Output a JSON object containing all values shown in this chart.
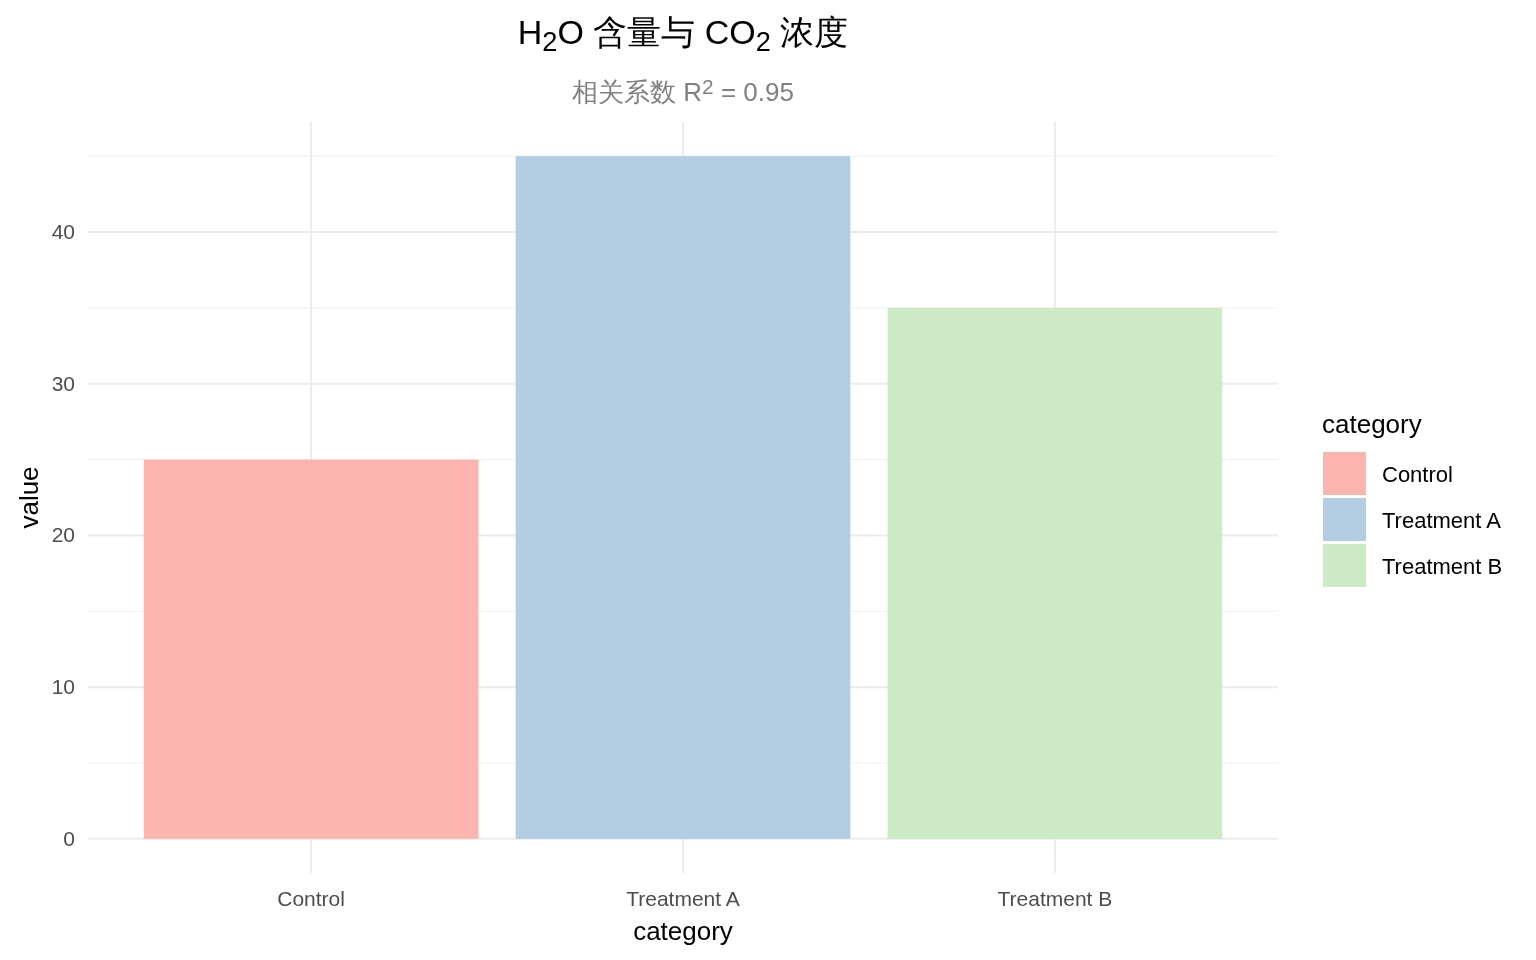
{
  "chart_data": {
    "type": "bar",
    "title": "H$_{2}$O 含量与 CO$_{2}$ 浓度",
    "subtitle": "相关系数 R$^{2}$ = 0.95",
    "xlabel": "category",
    "ylabel": "value",
    "legend_title": "category",
    "categories": [
      "Control",
      "Treatment A",
      "Treatment B"
    ],
    "series": [
      {
        "name": "Control",
        "color": "#fbb4ae",
        "values": [
          25,
          null,
          null
        ]
      },
      {
        "name": "Treatment A",
        "color": "#b3cde3",
        "values": [
          null,
          45,
          null
        ]
      },
      {
        "name": "Treatment B",
        "color": "#ccebc5",
        "values": [
          null,
          null,
          35
        ]
      }
    ],
    "stacked": true,
    "ylim": [
      -2.25,
      47.25
    ],
    "yticks": [
      0,
      10,
      20,
      30,
      40
    ],
    "grid": true,
    "legend": "right"
  }
}
